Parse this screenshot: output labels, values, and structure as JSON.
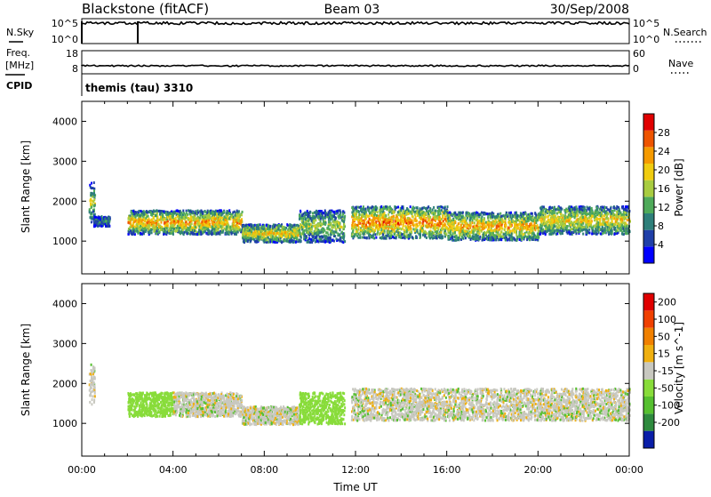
{
  "header": {
    "station": "Blackstone (fitACF)",
    "beam": "Beam 03",
    "date": "30/Sep/2008"
  },
  "noise_panel": {
    "left_label": "N.Sky",
    "left_ticks": [
      "10^5",
      "10^0"
    ],
    "right_ticks": [
      "10^5",
      "10^0"
    ],
    "right_label": "N.Search"
  },
  "freq_panel": {
    "left_label_line1": "Freq.",
    "left_label_line2": "[MHz]",
    "left_ticks": [
      "18",
      "8"
    ],
    "right_ticks": [
      "60",
      "0"
    ],
    "right_label": "Nave"
  },
  "cpid": {
    "label": "CPID",
    "value": "themis (tau) 3310"
  },
  "x_axis": {
    "ticks": [
      "00:00",
      "04:00",
      "08:00",
      "12:00",
      "16:00",
      "20:00",
      "00:00"
    ],
    "label": "Time UT"
  },
  "y_axis": {
    "label": "Slant Range [km]",
    "ticks": [
      "1000",
      "2000",
      "3000",
      "4000"
    ]
  },
  "chart_data": [
    {
      "type": "heatmap",
      "title": "Power",
      "xlabel": "Time UT",
      "ylabel": "Slant Range [km]",
      "xlim": [
        0,
        24
      ],
      "ylim": [
        180,
        4500
      ],
      "colorbar": {
        "label": "Power [dB]",
        "range": [
          0,
          32
        ],
        "tick_labels": [
          "4",
          "8",
          "12",
          "16",
          "20",
          "24",
          "28"
        ],
        "colors": [
          "#0000ff",
          "#1f3fa8",
          "#2e7f7a",
          "#4faa5a",
          "#a8cc40",
          "#f0cc10",
          "#f59a00",
          "#ee5400",
          "#e00000"
        ]
      },
      "scatter_bands": [
        {
          "t_start": 0.3,
          "t_end": 0.55,
          "r_low": 1500,
          "r_high": 2500,
          "power": 14
        },
        {
          "t_start": 0.5,
          "t_end": 1.2,
          "r_low": 1400,
          "r_high": 1650,
          "power": 8
        },
        {
          "t_start": 2.0,
          "t_end": 7.0,
          "r_low": 1200,
          "r_high": 1800,
          "power": 20
        },
        {
          "t_start": 7.0,
          "t_end": 9.5,
          "r_low": 1000,
          "r_high": 1450,
          "power": 18
        },
        {
          "t_start": 9.5,
          "t_end": 11.5,
          "r_low": 1000,
          "r_high": 1800,
          "power": 14
        },
        {
          "t_start": 11.8,
          "t_end": 16.0,
          "r_low": 1100,
          "r_high": 1900,
          "power": 22
        },
        {
          "t_start": 16.0,
          "t_end": 20.0,
          "r_low": 1050,
          "r_high": 1750,
          "power": 20
        },
        {
          "t_start": 20.0,
          "t_end": 24.0,
          "r_low": 1200,
          "r_high": 1900,
          "power": 18
        }
      ]
    },
    {
      "type": "heatmap",
      "title": "Velocity",
      "xlabel": "Time UT",
      "ylabel": "Slant Range [km]",
      "xlim": [
        0,
        24
      ],
      "ylim": [
        180,
        4500
      ],
      "colorbar": {
        "label": "Velocity [m s^-1]",
        "tick_labels": [
          "200",
          "100",
          "50",
          "15",
          "-15",
          "-50",
          "-100",
          "-200"
        ],
        "colors": [
          "#0a1ea8",
          "#2e8a3e",
          "#56c030",
          "#88dc3a",
          "#c8c8c0",
          "#f0b010",
          "#f08000",
          "#f04000",
          "#e00000"
        ]
      },
      "scatter_bands": [
        {
          "t_start": 0.3,
          "t_end": 0.55,
          "r_low": 1500,
          "r_high": 2500,
          "velocity": 0
        },
        {
          "t_start": 2.0,
          "t_end": 4.0,
          "r_low": 1200,
          "r_high": 1800,
          "velocity": 60
        },
        {
          "t_start": 4.0,
          "t_end": 7.0,
          "r_low": 1200,
          "r_high": 1800,
          "velocity": 0
        },
        {
          "t_start": 7.0,
          "t_end": 9.5,
          "r_low": 1000,
          "r_high": 1450,
          "velocity": 0
        },
        {
          "t_start": 9.5,
          "t_end": 11.5,
          "r_low": 1000,
          "r_high": 1800,
          "velocity": 60
        },
        {
          "t_start": 11.8,
          "t_end": 24.0,
          "r_low": 1100,
          "r_high": 1900,
          "velocity": 0
        }
      ]
    }
  ]
}
